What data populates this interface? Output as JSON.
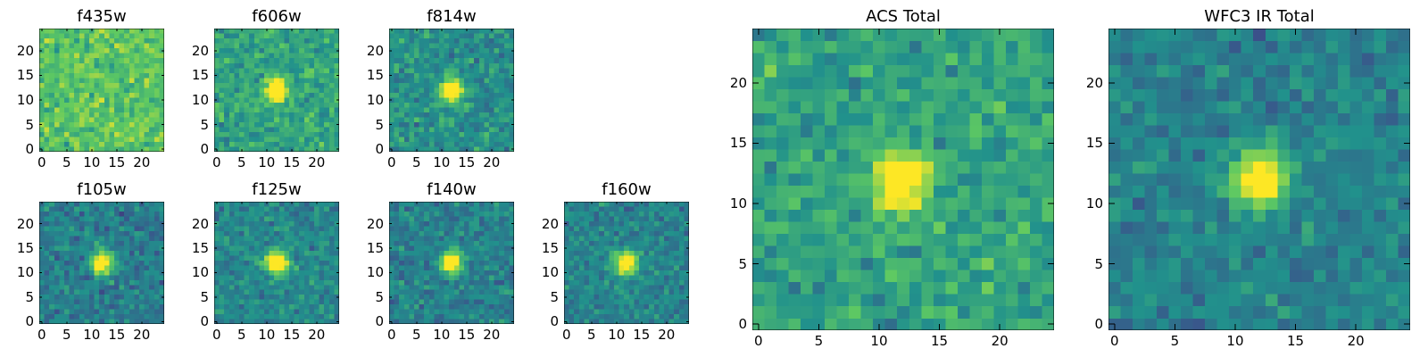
{
  "colormap": {
    "name": "viridis",
    "stops": [
      "#440154",
      "#3b528b",
      "#21918c",
      "#5ec962",
      "#fde725"
    ]
  },
  "chart_data": [
    {
      "type": "heatmap",
      "title": "f435w",
      "grid": false,
      "xlim": [
        0,
        25
      ],
      "ylim": [
        0,
        25
      ],
      "xticks": [
        0,
        5,
        10,
        15,
        20
      ],
      "yticks": [
        0,
        5,
        10,
        15,
        20
      ],
      "source_center": null,
      "background_level": 0.72,
      "noise": 0.16,
      "seed": 11
    },
    {
      "type": "heatmap",
      "title": "f606w",
      "grid": false,
      "xlim": [
        0,
        25
      ],
      "ylim": [
        0,
        25
      ],
      "xticks": [
        0,
        5,
        10,
        15,
        20
      ],
      "yticks": [
        0,
        5,
        10,
        15,
        20
      ],
      "source_center": [
        12,
        12
      ],
      "background_level": 0.58,
      "noise": 0.15,
      "seed": 23
    },
    {
      "type": "heatmap",
      "title": "f814w",
      "grid": false,
      "xlim": [
        0,
        25
      ],
      "ylim": [
        0,
        25
      ],
      "xticks": [
        0,
        5,
        10,
        15,
        20
      ],
      "yticks": [
        0,
        5,
        10,
        15,
        20
      ],
      "source_center": [
        12,
        12
      ],
      "background_level": 0.5,
      "noise": 0.15,
      "seed": 37
    },
    {
      "type": "heatmap",
      "title": "f105w",
      "grid": false,
      "xlim": [
        0,
        25
      ],
      "ylim": [
        0,
        25
      ],
      "xticks": [
        0,
        5,
        10,
        15,
        20
      ],
      "yticks": [
        0,
        5,
        10,
        15,
        20
      ],
      "source_center": [
        12,
        12
      ],
      "background_level": 0.42,
      "noise": 0.14,
      "seed": 41
    },
    {
      "type": "heatmap",
      "title": "f125w",
      "grid": false,
      "xlim": [
        0,
        25
      ],
      "ylim": [
        0,
        25
      ],
      "xticks": [
        0,
        5,
        10,
        15,
        20
      ],
      "yticks": [
        0,
        5,
        10,
        15,
        20
      ],
      "source_center": [
        12,
        12
      ],
      "background_level": 0.47,
      "noise": 0.13,
      "seed": 53
    },
    {
      "type": "heatmap",
      "title": "f140w",
      "grid": false,
      "xlim": [
        0,
        25
      ],
      "ylim": [
        0,
        25
      ],
      "xticks": [
        0,
        5,
        10,
        15,
        20
      ],
      "yticks": [
        0,
        5,
        10,
        15,
        20
      ],
      "source_center": [
        12,
        12
      ],
      "background_level": 0.44,
      "noise": 0.14,
      "seed": 67
    },
    {
      "type": "heatmap",
      "title": "f160w",
      "grid": false,
      "xlim": [
        0,
        25
      ],
      "ylim": [
        0,
        25
      ],
      "xticks": [
        0,
        5,
        10,
        15,
        20
      ],
      "yticks": [
        0,
        5,
        10,
        15,
        20
      ],
      "source_center": [
        12,
        12
      ],
      "background_level": 0.45,
      "noise": 0.13,
      "seed": 79
    },
    {
      "type": "heatmap",
      "title": "ACS Total",
      "grid": false,
      "xlim": [
        0,
        25
      ],
      "ylim": [
        0,
        25
      ],
      "xticks": [
        0,
        5,
        10,
        15,
        20
      ],
      "yticks": [
        0,
        5,
        10,
        15,
        20
      ],
      "source_center": [
        12,
        12
      ],
      "background_level": 0.58,
      "noise": 0.15,
      "seed": 83
    },
    {
      "type": "heatmap",
      "title": "WFC3 IR Total",
      "grid": false,
      "xlim": [
        0,
        25
      ],
      "ylim": [
        0,
        25
      ],
      "xticks": [
        0,
        5,
        10,
        15,
        20
      ],
      "yticks": [
        0,
        5,
        10,
        15,
        20
      ],
      "source_center": [
        12,
        12
      ],
      "background_level": 0.44,
      "noise": 0.12,
      "seed": 97
    }
  ]
}
